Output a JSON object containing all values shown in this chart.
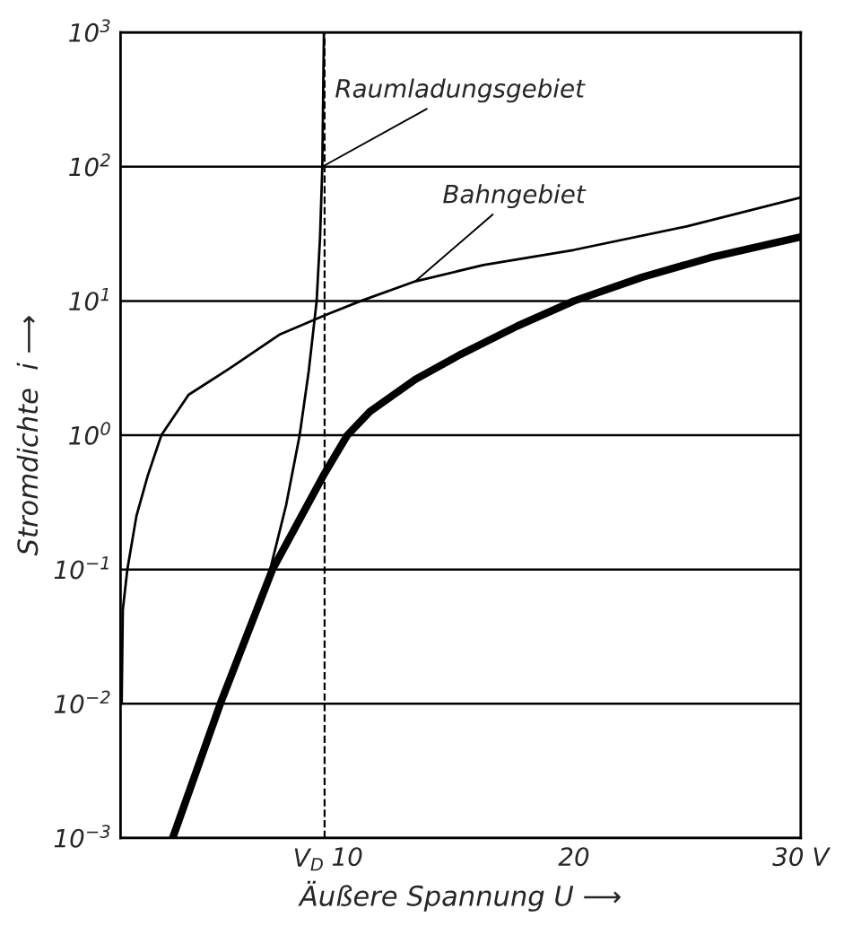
{
  "chart_data": {
    "type": "line",
    "xlabel": "Äußere Spannung U ⟶",
    "ylabel": "Stromdichte  i ⟶",
    "log": "y",
    "grid": "y",
    "legend": false,
    "marker": "none",
    "line_style": "solid",
    "xlim": [
      0,
      30
    ],
    "xticks": [
      10,
      20,
      {
        "value": 30,
        "label": "30 V"
      }
    ],
    "ylim": [
      0.001,
      1000
    ],
    "yticks": [
      {
        "value": 0.001,
        "label": "10$^{−3}$"
      },
      {
        "value": 0.01,
        "label": "10$^{−2}$"
      },
      {
        "value": 0.1,
        "label": "10$^{−1}$"
      },
      {
        "value": 1,
        "label": "10$^{0}$"
      },
      {
        "value": 10,
        "label": "10$^{1}$"
      },
      {
        "value": 100,
        "label": "10$^{2}$"
      },
      {
        "value": 1000,
        "label": "10$^{3}$"
      }
    ],
    "ref_lines": [
      {
        "axis": "x",
        "value": 9,
        "label": "V$_{D}$",
        "color": "#000000",
        "line_style": "dashed"
      }
    ],
    "series": [
      {
        "name": "Raumladungsgebiet",
        "color": "#000000",
        "x": [
          6.6,
          7.3,
          7.9,
          8.3,
          8.65,
          8.8,
          8.9,
          8.97
        ],
        "values": [
          0.1,
          0.3,
          1,
          3,
          10,
          30,
          100,
          1000
        ]
      },
      {
        "name": "Bahngebiet",
        "color": "#000000",
        "x": [
          0.05,
          0.1,
          0.3,
          0.7,
          1.2,
          1.8,
          3,
          5,
          7,
          9,
          10.6,
          13,
          16,
          20,
          25,
          30
        ],
        "values": [
          0.01,
          0.05,
          0.1,
          0.25,
          0.5,
          1,
          2,
          3.3,
          5.6,
          7.8,
          10,
          14,
          18.5,
          24,
          36,
          59
        ]
      },
      {
        "color": "#000000",
        "x": [
          2.3,
          4.4,
          6.7,
          9,
          10,
          11,
          13,
          15,
          17.5,
          20,
          23,
          26,
          30
        ],
        "values": [
          0.001,
          0.01,
          0.1,
          0.52,
          1,
          1.5,
          2.6,
          4,
          6.5,
          10,
          15,
          21,
          30
        ]
      }
    ]
  }
}
